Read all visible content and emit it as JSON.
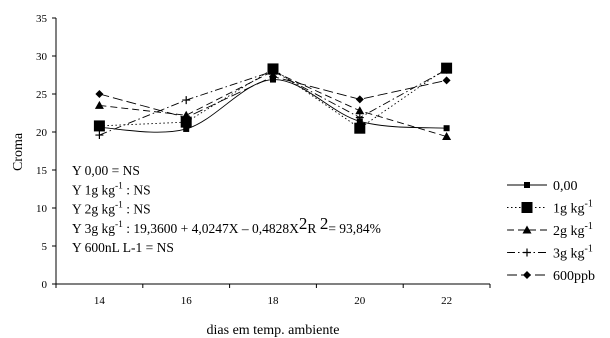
{
  "chart_data": {
    "type": "line",
    "title": "",
    "xlabel": "dias em temp. ambiente",
    "ylabel": "Croma",
    "x": [
      14,
      16,
      18,
      20,
      22
    ],
    "xlim": [
      13,
      23
    ],
    "ylim": [
      0,
      35
    ],
    "yticks": [
      0,
      5,
      10,
      15,
      20,
      25,
      30,
      35
    ],
    "grid": false,
    "legend_position": "right",
    "series": [
      {
        "name": "0,00",
        "marker": "square-small",
        "dash": "solid",
        "smooth": true,
        "values": [
          20.6,
          20.4,
          26.9,
          21.4,
          20.5
        ]
      },
      {
        "name": "1g kg",
        "name_sup": "-1",
        "marker": "square-large",
        "dash": "dotted",
        "smooth": false,
        "values": [
          20.8,
          21.3,
          28.3,
          20.5,
          28.4
        ]
      },
      {
        "name": "2g kg",
        "name_sup": "-1",
        "marker": "triangle",
        "dash": "dashed",
        "smooth": false,
        "values": [
          23.5,
          22.2,
          28.0,
          22.8,
          19.4
        ]
      },
      {
        "name": "3g kg",
        "name_sup": "-1",
        "marker": "plus",
        "dash": "dashdot",
        "smooth": false,
        "values": [
          19.6,
          24.2,
          28.0,
          21.9,
          28.2
        ]
      },
      {
        "name": "600ppb",
        "marker": "diamond",
        "dash": "longdash",
        "smooth": false,
        "values": [
          25.0,
          21.9,
          27.3,
          24.3,
          26.8
        ]
      }
    ],
    "annotations": [
      {
        "parts": [
          {
            "t": "Y 0,00 = NS"
          }
        ]
      },
      {
        "parts": [
          {
            "t": "Y 1g kg"
          },
          {
            "t": "-1",
            "sup": true
          },
          {
            "t": " : NS"
          }
        ]
      },
      {
        "parts": [
          {
            "t": "Y 2g kg"
          },
          {
            "t": "-1",
            "sup": true
          },
          {
            "t": " : NS"
          }
        ]
      },
      {
        "parts": [
          {
            "t": "Y 3g kg"
          },
          {
            "t": "-1",
            "sup": true
          },
          {
            "t": " : 19,3600 + 4,0247X – 0,4828X"
          },
          {
            "t": "2",
            "big": true
          },
          {
            "t": "R "
          },
          {
            "t": "2",
            "big": true
          },
          {
            "t": "= 93,84%"
          }
        ]
      },
      {
        "parts": [
          {
            "t": "Y 600nL L-1 = NS"
          }
        ]
      }
    ]
  }
}
